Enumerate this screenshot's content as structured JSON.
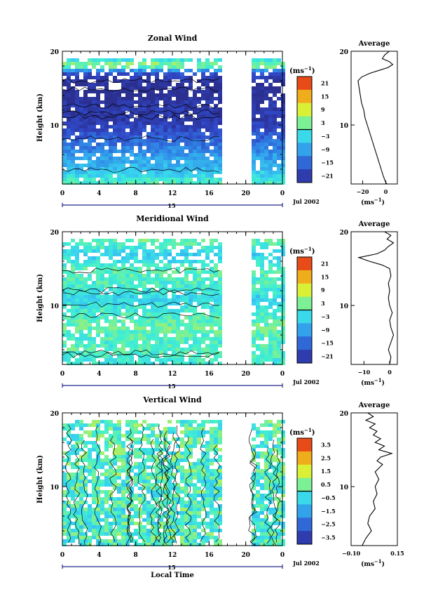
{
  "chart_data": [
    {
      "type": "heatmap",
      "title": "Zonal Wind",
      "ylabel": "Height (km)",
      "y_ticks": [
        "20",
        "10"
      ],
      "ylim": [
        2.0,
        20.0
      ],
      "x_ticks": [
        "0",
        "4",
        "8",
        "12",
        "16",
        "20",
        "0"
      ],
      "xlim": [
        0,
        24
      ],
      "date_day": "15",
      "date_right": "Jul 2002",
      "data_gap_hours": [
        17.5,
        20.5
      ],
      "colorbar": {
        "unit": "(ms",
        "unit_exp": "−1",
        "labels": [
          "21",
          "15",
          "9",
          "3",
          "−3",
          "−9",
          "−15",
          "−21"
        ],
        "range": [
          -24,
          24
        ]
      },
      "profile_rows": [
        {
          "h": 20.0,
          "v": 3
        },
        {
          "h": 19.5,
          "v": -2
        },
        {
          "h": 19.0,
          "v": -4
        },
        {
          "h": 18.5,
          "v": 2
        },
        {
          "h": 18.0,
          "v": 5
        },
        {
          "h": 17.5,
          "v": -8
        },
        {
          "h": 17.0,
          "v": -18
        },
        {
          "h": 16.0,
          "v": -22
        },
        {
          "h": 15.0,
          "v": -24
        },
        {
          "h": 14.0,
          "v": -24
        },
        {
          "h": 13.0,
          "v": -22
        },
        {
          "h": 12.0,
          "v": -21
        },
        {
          "h": 11.0,
          "v": -22
        },
        {
          "h": 10.0,
          "v": -20
        },
        {
          "h": 9.0,
          "v": -18
        },
        {
          "h": 8.0,
          "v": -15
        },
        {
          "h": 7.0,
          "v": -13
        },
        {
          "h": 6.0,
          "v": -10
        },
        {
          "h": 5.0,
          "v": -8
        },
        {
          "h": 4.0,
          "v": -6
        },
        {
          "h": 3.0,
          "v": -3
        },
        {
          "h": 2.5,
          "v": -1
        },
        {
          "h": 2.0,
          "v": 0
        }
      ],
      "average": {
        "title": "Average",
        "x_ticks": [
          "−20",
          "0"
        ],
        "tick_values": [
          -20,
          0
        ],
        "xlim": [
          -30,
          10
        ],
        "y_ticks": [
          "20",
          "10"
        ],
        "xlabel": "(ms",
        "xlabel_exp": "−1",
        "series": [
          {
            "h": 20.0,
            "v": 3
          },
          {
            "h": 19.5,
            "v": -1
          },
          {
            "h": 19.0,
            "v": -3
          },
          {
            "h": 18.6,
            "v": 3
          },
          {
            "h": 18.2,
            "v": 6
          },
          {
            "h": 17.8,
            "v": 2
          },
          {
            "h": 17.4,
            "v": -6
          },
          {
            "h": 17.0,
            "v": -14
          },
          {
            "h": 16.5,
            "v": -21
          },
          {
            "h": 16.0,
            "v": -24
          },
          {
            "h": 15.0,
            "v": -23
          },
          {
            "h": 14.0,
            "v": -22
          },
          {
            "h": 13.0,
            "v": -21
          },
          {
            "h": 12.0,
            "v": -19
          },
          {
            "h": 11.0,
            "v": -18
          },
          {
            "h": 10.0,
            "v": -16
          },
          {
            "h": 9.0,
            "v": -14
          },
          {
            "h": 8.0,
            "v": -12
          },
          {
            "h": 7.0,
            "v": -10
          },
          {
            "h": 6.0,
            "v": -8
          },
          {
            "h": 5.0,
            "v": -6
          },
          {
            "h": 4.0,
            "v": -4
          },
          {
            "h": 3.0,
            "v": -2
          },
          {
            "h": 2.2,
            "v": 0
          },
          {
            "h": 2.0,
            "v": 1
          }
        ]
      }
    },
    {
      "type": "heatmap",
      "title": "Meridional Wind",
      "ylabel": "Height (km)",
      "y_ticks": [
        "20",
        "10"
      ],
      "ylim": [
        2.0,
        20.0
      ],
      "x_ticks": [
        "0",
        "4",
        "8",
        "12",
        "16",
        "20",
        "0"
      ],
      "xlim": [
        0,
        24
      ],
      "date_day": "15",
      "date_right": "Jul 2002",
      "data_gap_hours": [
        17.5,
        20.5
      ],
      "colorbar": {
        "unit": "(ms",
        "unit_exp": "−1",
        "labels": [
          "21",
          "15",
          "9",
          "3",
          "−3",
          "−9",
          "−15",
          "−21"
        ],
        "range": [
          -24,
          24
        ]
      },
      "profile_rows": [
        {
          "h": 20.0,
          "v": 0
        },
        {
          "h": 19.0,
          "v": 2
        },
        {
          "h": 18.0,
          "v": 0
        },
        {
          "h": 17.0,
          "v": -4
        },
        {
          "h": 16.0,
          "v": -2
        },
        {
          "h": 15.0,
          "v": 1
        },
        {
          "h": 14.0,
          "v": 1
        },
        {
          "h": 13.0,
          "v": 0
        },
        {
          "h": 12.0,
          "v": -1
        },
        {
          "h": 11.0,
          "v": -4
        },
        {
          "h": 10.0,
          "v": -2
        },
        {
          "h": 9.0,
          "v": 0
        },
        {
          "h": 8.0,
          "v": 1
        },
        {
          "h": 7.0,
          "v": 2
        },
        {
          "h": 6.0,
          "v": 1
        },
        {
          "h": 5.0,
          "v": 0
        },
        {
          "h": 4.0,
          "v": 1
        },
        {
          "h": 3.0,
          "v": 0
        },
        {
          "h": 2.0,
          "v": -1
        }
      ],
      "average": {
        "title": "Average",
        "x_ticks": [
          "−10",
          "0"
        ],
        "tick_values": [
          -10,
          0
        ],
        "xlim": [
          -15,
          3
        ],
        "y_ticks": [
          "20",
          "10"
        ],
        "xlabel": "(ms",
        "xlabel_exp": "−1",
        "series": [
          {
            "h": 20.0,
            "v": -2
          },
          {
            "h": 19.5,
            "v": 0.5
          },
          {
            "h": 19.0,
            "v": -1
          },
          {
            "h": 18.5,
            "v": 1.5
          },
          {
            "h": 18.0,
            "v": -0.5
          },
          {
            "h": 17.5,
            "v": -2
          },
          {
            "h": 17.0,
            "v": -5
          },
          {
            "h": 16.5,
            "v": -12
          },
          {
            "h": 16.0,
            "v": -8
          },
          {
            "h": 15.5,
            "v": -3
          },
          {
            "h": 15.0,
            "v": 0
          },
          {
            "h": 14.0,
            "v": 0.5
          },
          {
            "h": 13.0,
            "v": -0.5
          },
          {
            "h": 12.0,
            "v": 0
          },
          {
            "h": 11.0,
            "v": -0.5
          },
          {
            "h": 10.0,
            "v": 0
          },
          {
            "h": 9.0,
            "v": 1
          },
          {
            "h": 8.0,
            "v": 0
          },
          {
            "h": 7.0,
            "v": 0.5
          },
          {
            "h": 6.0,
            "v": 1.5
          },
          {
            "h": 5.0,
            "v": 0.5
          },
          {
            "h": 4.0,
            "v": -0.5
          },
          {
            "h": 3.0,
            "v": 0.5
          },
          {
            "h": 2.0,
            "v": 0
          }
        ]
      }
    },
    {
      "type": "heatmap",
      "title": "Vertical Wind",
      "ylabel": "Height (km)",
      "xlabel": "Local Time",
      "y_ticks": [
        "20",
        "10"
      ],
      "ylim": [
        2.0,
        20.0
      ],
      "x_ticks": [
        "0",
        "4",
        "8",
        "12",
        "16",
        "20",
        "0"
      ],
      "xlim": [
        0,
        24
      ],
      "date_day": "15",
      "date_right": "Jul 2002",
      "data_gap_hours": [
        17.5,
        20.5
      ],
      "colorbar": {
        "unit": "(ms",
        "unit_exp": "−1",
        "labels": [
          "3.5",
          "2.5",
          "1.5",
          "0.5",
          "−0.5",
          "−1.5",
          "−2.5",
          "−3.5"
        ],
        "range": [
          -4,
          4
        ]
      },
      "profile_rows": [
        {
          "h": 20.0,
          "v": 0.2
        },
        {
          "h": 18.0,
          "v": 0.1
        },
        {
          "h": 16.0,
          "v": 0.2
        },
        {
          "h": 14.0,
          "v": 0.1
        },
        {
          "h": 12.0,
          "v": 0.1
        },
        {
          "h": 10.0,
          "v": 0.0
        },
        {
          "h": 8.0,
          "v": 0.0
        },
        {
          "h": 6.0,
          "v": -0.1
        },
        {
          "h": 4.0,
          "v": 0.0
        },
        {
          "h": 2.0,
          "v": 0.0
        }
      ],
      "average": {
        "title": "Average",
        "x_ticks": [
          "−0.10",
          "0.15"
        ],
        "tick_values": [
          -0.1,
          0.15
        ],
        "xlim": [
          -0.1,
          0.15
        ],
        "y_ticks": [
          "20",
          "10"
        ],
        "xlabel": "(ms",
        "xlabel_exp": "−1",
        "series": [
          {
            "h": 20.0,
            "v": -0.01
          },
          {
            "h": 19.5,
            "v": 0.02
          },
          {
            "h": 19.0,
            "v": -0.02
          },
          {
            "h": 18.5,
            "v": 0.03
          },
          {
            "h": 18.0,
            "v": 0.0
          },
          {
            "h": 17.5,
            "v": 0.04
          },
          {
            "h": 17.0,
            "v": 0.02
          },
          {
            "h": 16.5,
            "v": 0.06
          },
          {
            "h": 16.0,
            "v": 0.03
          },
          {
            "h": 15.5,
            "v": 0.08
          },
          {
            "h": 15.0,
            "v": 0.05
          },
          {
            "h": 14.5,
            "v": 0.12
          },
          {
            "h": 14.0,
            "v": 0.06
          },
          {
            "h": 13.5,
            "v": 0.04
          },
          {
            "h": 13.0,
            "v": 0.07
          },
          {
            "h": 12.0,
            "v": 0.03
          },
          {
            "h": 11.0,
            "v": 0.05
          },
          {
            "h": 10.0,
            "v": 0.03
          },
          {
            "h": 9.0,
            "v": 0.04
          },
          {
            "h": 8.0,
            "v": 0.02
          },
          {
            "h": 7.0,
            "v": 0.03
          },
          {
            "h": 6.0,
            "v": 0.0
          },
          {
            "h": 5.0,
            "v": -0.01
          },
          {
            "h": 4.0,
            "v": 0.01
          },
          {
            "h": 3.0,
            "v": -0.02
          },
          {
            "h": 2.0,
            "v": -0.04
          }
        ]
      }
    }
  ]
}
